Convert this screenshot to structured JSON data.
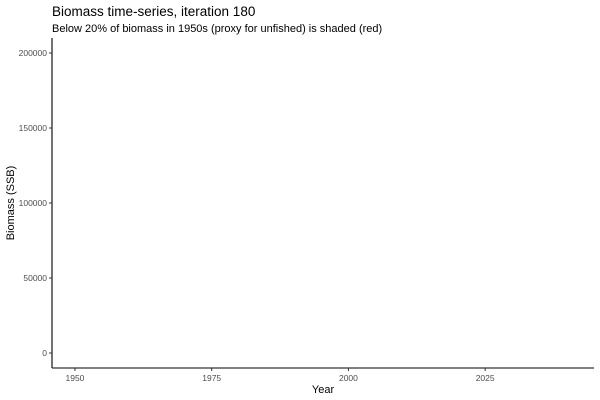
{
  "chart_data": {
    "type": "line",
    "title": "Biomass time-series, iteration 180",
    "subtitle": "Below 20% of biomass in 1950s (proxy for unfished) is shaded (red)",
    "xlabel": "Year",
    "ylabel": "Biomass (SSB)",
    "xlim": [
      1945.8,
      2044.9
    ],
    "ylim": [
      -10000,
      210000
    ],
    "xticks": [
      1950,
      1975,
      2000,
      2025
    ],
    "yticks": [
      0,
      50000,
      100000,
      150000,
      200000
    ],
    "xtick_labels": [
      "1950",
      "1975",
      "2000",
      "2025"
    ],
    "ytick_labels": [
      "0",
      "50000",
      "100000",
      "150000",
      "200000"
    ],
    "grid": false,
    "series": [],
    "colors": {
      "axis": "#000000",
      "tick_text": "#4d4d4d",
      "shade": "#ff0000"
    }
  }
}
